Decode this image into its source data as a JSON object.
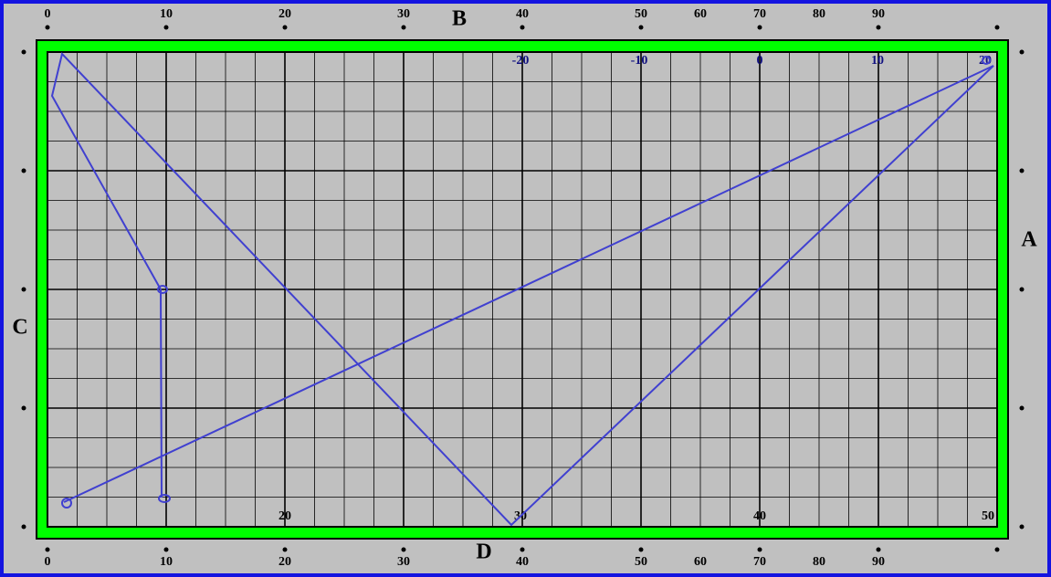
{
  "letters": {
    "top": "B",
    "right": "A",
    "left": "C",
    "bottom": "D"
  },
  "top_ruler": [
    "0",
    "10",
    "20",
    "30",
    "40",
    "50",
    "60",
    "70",
    "80",
    "90"
  ],
  "bottom_ruler": [
    "0",
    "10",
    "20",
    "30",
    "40",
    "50",
    "60",
    "70",
    "80",
    "90"
  ],
  "inner_top_labels": [
    "-20",
    "-10",
    "0",
    "10",
    "20"
  ],
  "inner_bottom_labels": [
    "20",
    "30",
    "40",
    "50"
  ]
}
